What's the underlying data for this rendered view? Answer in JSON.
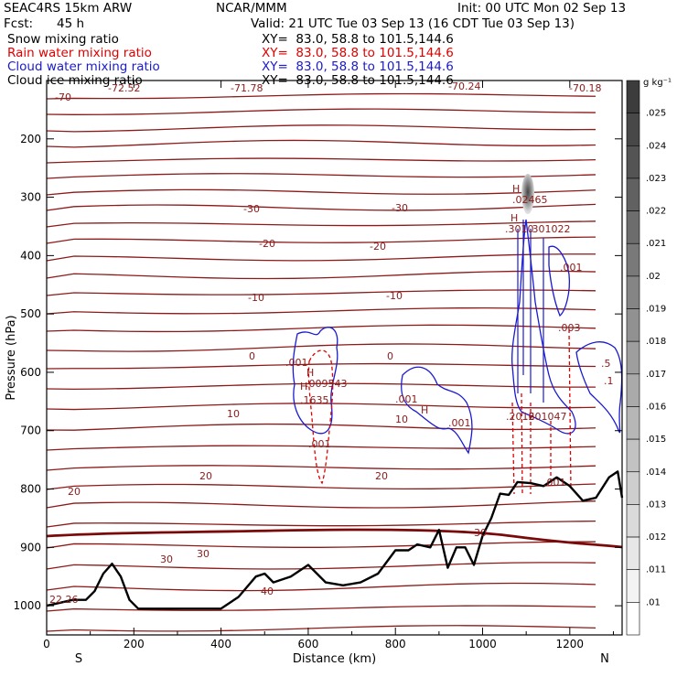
{
  "header": {
    "model": "SEAC4RS 15km ARW",
    "org": "NCAR/MMM",
    "init": "Init: 00 UTC Mon 02 Sep 13",
    "fcst_label": "Fcst:",
    "fcst_value": "45 h",
    "valid": "Valid: 21 UTC Tue 03 Sep 13 (16 CDT Tue 03 Sep 13)",
    "fields": [
      {
        "name": "Snow mixing ratio",
        "xy": "XY=  83.0, 58.8 to 101.5,144.6",
        "color": "#000000"
      },
      {
        "name": "Rain water mixing ratio",
        "xy": "XY=  83.0, 58.8 to 101.5,144.6",
        "color": "#e00000"
      },
      {
        "name": "Cloud water mixing ratio",
        "xy": "XY=  83.0, 58.8 to 101.5,144.6",
        "color": "#1a1ad0"
      },
      {
        "name": "Cloud ice mixing ratio",
        "xy": "XY=  83.0, 58.8 to 101.5,144.6",
        "color": "#000000"
      }
    ]
  },
  "chart_data": {
    "type": "cross-section",
    "xlabel": "Distance (km)",
    "ylabel": "Pressure (hPa)",
    "xlim": [
      0,
      1320
    ],
    "ylim": [
      1050,
      100
    ],
    "x_ticks": [
      "0",
      "200",
      "400",
      "600",
      "800",
      "1000",
      "1200"
    ],
    "y_ticks": [
      "200",
      "300",
      "400",
      "500",
      "600",
      "700",
      "800",
      "900",
      "1000"
    ],
    "endpoints": {
      "left": "S",
      "right": "N"
    },
    "colorbar": {
      "unit": "g kg⁻¹",
      "levels": [
        ".025",
        ".024",
        ".023",
        ".022",
        ".021",
        ".02",
        ".019",
        ".018",
        ".017",
        ".016",
        ".015",
        ".014",
        ".013",
        ".012",
        ".011",
        ".01"
      ]
    },
    "terrain": {
      "x": [
        0,
        30,
        60,
        90,
        110,
        130,
        150,
        170,
        190,
        210,
        240,
        300,
        350,
        400,
        440,
        480,
        500,
        520,
        560,
        600,
        640,
        680,
        720,
        760,
        800,
        830,
        850,
        880,
        900,
        920,
        940,
        960,
        980,
        1000,
        1020,
        1040,
        1060,
        1080,
        1110,
        1140,
        1170,
        1200,
        1230,
        1260,
        1290,
        1310,
        1320
      ],
      "p": [
        1000,
        995,
        990,
        990,
        975,
        945,
        928,
        950,
        990,
        1005,
        1005,
        1005,
        1005,
        1005,
        985,
        950,
        945,
        960,
        950,
        930,
        960,
        965,
        960,
        945,
        905,
        905,
        895,
        900,
        870,
        935,
        900,
        900,
        930,
        880,
        850,
        808,
        810,
        788,
        790,
        795,
        780,
        795,
        820,
        815,
        780,
        770,
        815
      ]
    },
    "isotherm_labels": [
      "-70",
      "-72.52",
      "-71.78",
      "-70.24",
      "-70.18",
      "-30",
      "-30",
      "-20",
      "-20",
      "-10",
      "-10",
      "0",
      "0",
      "10",
      "10",
      "20",
      "20",
      "20",
      "30",
      "30",
      "30",
      "40",
      "22.26"
    ],
    "hydrometeor_labels": {
      "snow": [
        "H",
        ".02465"
      ],
      "cloud_water": [
        ".001",
        "H",
        ".1635",
        ".001",
        ".001",
        "H",
        ".3010",
        ".301022",
        ".001"
      ],
      "rain": [
        ".009543",
        "H",
        ".001",
        "H",
        ".003"
      ],
      "extra": [
        ".2016",
        ".201047",
        ".001",
        ".5",
        ".1"
      ]
    }
  }
}
